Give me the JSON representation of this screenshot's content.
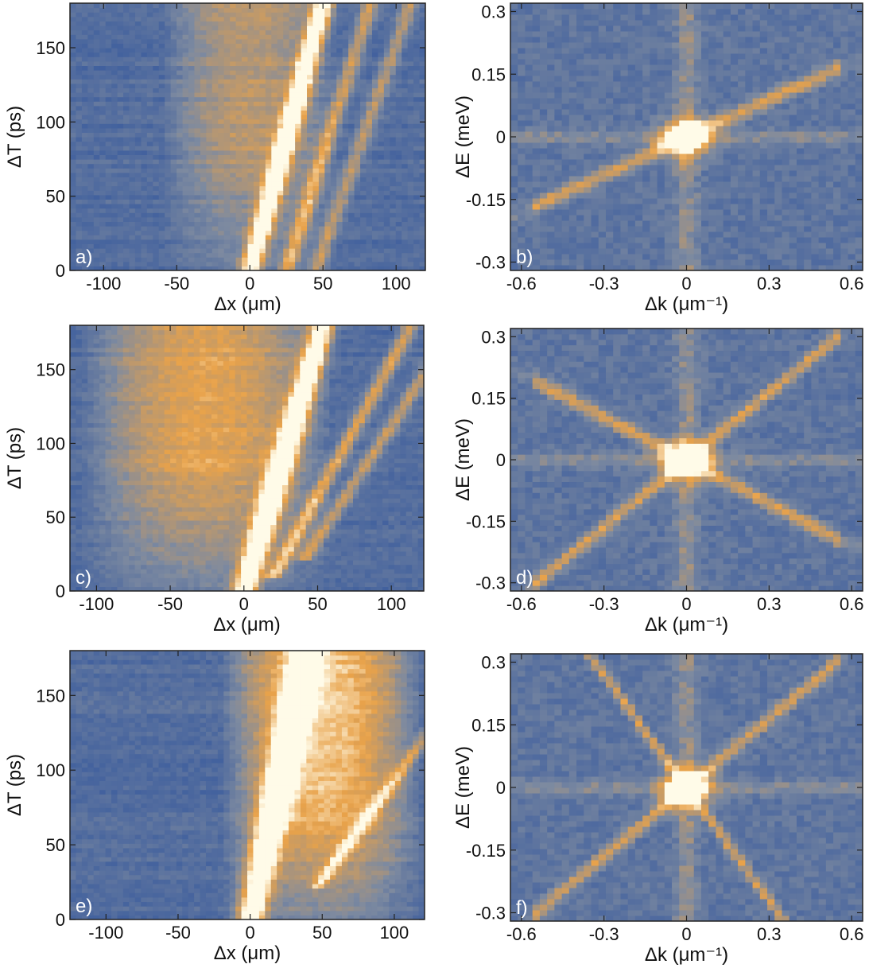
{
  "colors": {
    "low": "#3f5f9e",
    "mid": "#7d8aa0",
    "high": "#e8a24a",
    "peak": "#fffbe8",
    "frame": "#222222"
  },
  "chart_data": [
    {
      "type": "heatmap",
      "panel_label": "a)",
      "xlabel": "Δx (μm)",
      "ylabel": "ΔT (ps)",
      "xlim": [
        -123,
        120
      ],
      "ylim": [
        0,
        180
      ],
      "xticks": [
        -100,
        -50,
        0,
        50,
        100
      ],
      "xtick_labels": [
        "-100",
        "-50",
        "0",
        "50",
        "100"
      ],
      "yticks": [
        0,
        50,
        100,
        150
      ],
      "ytick_labels": [
        "0",
        "50",
        "100",
        "150"
      ],
      "traces": [
        {
          "x0": 0,
          "t0": 0,
          "slope": 0.28,
          "intensity": 1.0,
          "width": 5
        },
        {
          "x0": 25,
          "t0": 0,
          "slope": 0.32,
          "intensity": 0.55,
          "width": 4
        },
        {
          "x0": 45,
          "t0": 0,
          "slope": 0.36,
          "intensity": 0.45,
          "width": 4
        }
      ],
      "background_glow": {
        "x_from": -60,
        "x_to": 60,
        "level": 0.45
      }
    },
    {
      "type": "heatmap",
      "panel_label": "b)",
      "xlabel": "Δk (μm⁻¹)",
      "ylabel": "ΔE (meV)",
      "xlim": [
        -0.64,
        0.64
      ],
      "ylim": [
        -0.32,
        0.32
      ],
      "xticks": [
        -0.6,
        -0.3,
        0,
        0.3,
        0.6
      ],
      "xtick_labels": [
        "-0.6",
        "-0.3",
        "0",
        "0.3",
        "0.6"
      ],
      "yticks": [
        -0.3,
        -0.15,
        0,
        0.15,
        0.3
      ],
      "ytick_labels": [
        "-0.3",
        "-0.15",
        "0",
        "0.15",
        "0.3"
      ],
      "dispersion_slopes": [
        0.3
      ],
      "vertical_streak": true,
      "horizontal_streak": true
    },
    {
      "type": "heatmap",
      "panel_label": "c)",
      "xlabel": "Δx (μm)",
      "ylabel": "ΔT (ps)",
      "xlim": [
        -118,
        122
      ],
      "ylim": [
        0,
        180
      ],
      "xticks": [
        -100,
        -50,
        0,
        50,
        100
      ],
      "xtick_labels": [
        "-100",
        "-50",
        "0",
        "50",
        "100"
      ],
      "yticks": [
        0,
        50,
        100,
        150
      ],
      "ytick_labels": [
        "0",
        "50",
        "100",
        "150"
      ],
      "traces": [
        {
          "x0": 0,
          "t0": 0,
          "slope": 0.3,
          "intensity": 1.0,
          "width": 6
        },
        {
          "x0": 20,
          "t0": 10,
          "slope": 0.55,
          "intensity": 0.6,
          "width": 4
        },
        {
          "x0": 40,
          "t0": 20,
          "slope": 0.65,
          "intensity": 0.5,
          "width": 4
        }
      ],
      "background_glow": {
        "x_from": -110,
        "x_to": 60,
        "level": 0.6
      }
    },
    {
      "type": "heatmap",
      "panel_label": "d)",
      "xlabel": "Δk (μm⁻¹)",
      "ylabel": "ΔE (meV)",
      "xlim": [
        -0.64,
        0.64
      ],
      "ylim": [
        -0.32,
        0.32
      ],
      "xticks": [
        -0.6,
        -0.3,
        0,
        0.3,
        0.6
      ],
      "xtick_labels": [
        "-0.6",
        "-0.3",
        "0",
        "0.3",
        "0.6"
      ],
      "yticks": [
        -0.3,
        -0.15,
        0,
        0.15,
        0.3
      ],
      "ytick_labels": [
        "-0.3",
        "-0.15",
        "0",
        "0.15",
        "0.3"
      ],
      "dispersion_slopes": [
        0.55,
        -0.35
      ],
      "vertical_streak": true,
      "horizontal_streak": true
    },
    {
      "type": "heatmap",
      "panel_label": "e)",
      "xlabel": "Δx (μm)",
      "ylabel": "ΔT (ps)",
      "xlim": [
        -125,
        121
      ],
      "ylim": [
        0,
        180
      ],
      "xticks": [
        -100,
        -50,
        0,
        50,
        100
      ],
      "xtick_labels": [
        "-100",
        "-50",
        "0",
        "50",
        "100"
      ],
      "yticks": [
        0,
        50,
        100,
        150
      ],
      "ytick_labels": [
        "0",
        "50",
        "100",
        "150"
      ],
      "traces": [
        {
          "x0": 0,
          "t0": 0,
          "slope": 0.22,
          "intensity": 1.0,
          "width": 7
        },
        {
          "x0": 45,
          "t0": 20,
          "slope": 0.75,
          "intensity": 0.45,
          "width": 4
        }
      ],
      "background_glow": {
        "x_from": -20,
        "x_to": 120,
        "level": 0.75
      }
    },
    {
      "type": "heatmap",
      "panel_label": "f)",
      "xlabel": "Δk (μm⁻¹)",
      "ylabel": "ΔE (meV)",
      "xlim": [
        -0.64,
        0.64
      ],
      "ylim": [
        -0.32,
        0.32
      ],
      "xticks": [
        -0.6,
        -0.3,
        0,
        0.3,
        0.6
      ],
      "xtick_labels": [
        "-0.6",
        "-0.3",
        "0",
        "0.3",
        "0.6"
      ],
      "yticks": [
        -0.3,
        -0.15,
        0,
        0.15,
        0.3
      ],
      "ytick_labels": [
        "-0.3",
        "-0.15",
        "0",
        "0.15",
        "0.3"
      ],
      "dispersion_slopes": [
        0.55,
        -0.9
      ],
      "vertical_streak": true,
      "horizontal_streak": true
    }
  ]
}
